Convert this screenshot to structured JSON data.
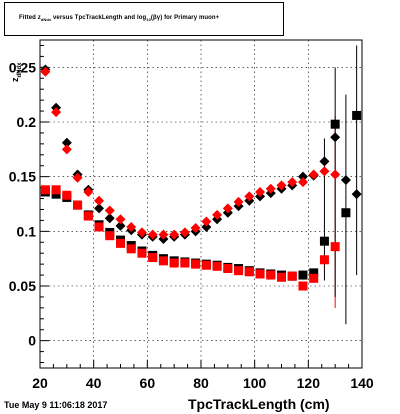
{
  "title": {
    "pre": "Fitted  z",
    "sub1": "dNdx",
    "mid": "  versus TpcTrackLength and log",
    "sub2": "10",
    "post": "(βγ) for Primary muon+"
  },
  "footer_date": "Tue May  9 11:06:18 2017",
  "chart_data": {
    "type": "scatter",
    "title": "Fitted z_dNdx versus TpcTrackLength and log10(βγ) for Primary muon+",
    "xlabel": "TpcTrackLength (cm)",
    "ylabel": "z_dNdx",
    "xlim": [
      20,
      140
    ],
    "ylim": [
      -0.025,
      0.275
    ],
    "x_ticks": [
      20,
      40,
      60,
      80,
      100,
      120,
      140
    ],
    "y_ticks": [
      0,
      0.05,
      0.1,
      0.15,
      0.2,
      0.25
    ],
    "x_tick_labels": [
      "20",
      "40",
      "60",
      "80",
      "100",
      "120",
      "140"
    ],
    "y_tick_labels": [
      "0",
      "0.05",
      "0.1",
      "0.15",
      "0.2",
      "0.25"
    ],
    "grid": true,
    "series": [
      {
        "color": "#000000",
        "marker": "diamond",
        "points": [
          {
            "x": 22,
            "y": 0.248
          },
          {
            "x": 26,
            "y": 0.213
          },
          {
            "x": 30,
            "y": 0.181
          },
          {
            "x": 34,
            "y": 0.152
          },
          {
            "x": 38,
            "y": 0.138
          },
          {
            "x": 42,
            "y": 0.121
          },
          {
            "x": 46,
            "y": 0.112
          },
          {
            "x": 50,
            "y": 0.105
          },
          {
            "x": 54,
            "y": 0.101
          },
          {
            "x": 58,
            "y": 0.097
          },
          {
            "x": 62,
            "y": 0.095
          },
          {
            "x": 66,
            "y": 0.093
          },
          {
            "x": 70,
            "y": 0.095
          },
          {
            "x": 74,
            "y": 0.097
          },
          {
            "x": 78,
            "y": 0.1
          },
          {
            "x": 82,
            "y": 0.104
          },
          {
            "x": 86,
            "y": 0.111
          },
          {
            "x": 90,
            "y": 0.117
          },
          {
            "x": 94,
            "y": 0.123
          },
          {
            "x": 98,
            "y": 0.128
          },
          {
            "x": 102,
            "y": 0.132
          },
          {
            "x": 106,
            "y": 0.135
          },
          {
            "x": 110,
            "y": 0.139
          },
          {
            "x": 114,
            "y": 0.142
          },
          {
            "x": 118,
            "y": 0.15
          },
          {
            "x": 122,
            "y": 0.151
          },
          {
            "x": 126,
            "y": 0.164
          },
          {
            "x": 130,
            "y": 0.186
          },
          {
            "x": 134,
            "y": 0.147
          },
          {
            "x": 138,
            "y": 0.134
          }
        ]
      },
      {
        "color": "#ff0000",
        "marker": "diamond",
        "points": [
          {
            "x": 22,
            "y": 0.246
          },
          {
            "x": 26,
            "y": 0.209
          },
          {
            "x": 30,
            "y": 0.175
          },
          {
            "x": 34,
            "y": 0.149
          },
          {
            "x": 38,
            "y": 0.136
          },
          {
            "x": 42,
            "y": 0.128
          },
          {
            "x": 46,
            "y": 0.119
          },
          {
            "x": 50,
            "y": 0.111
          },
          {
            "x": 54,
            "y": 0.104
          },
          {
            "x": 58,
            "y": 0.099
          },
          {
            "x": 62,
            "y": 0.097
          },
          {
            "x": 66,
            "y": 0.097
          },
          {
            "x": 70,
            "y": 0.097
          },
          {
            "x": 74,
            "y": 0.099
          },
          {
            "x": 78,
            "y": 0.103
          },
          {
            "x": 82,
            "y": 0.109
          },
          {
            "x": 86,
            "y": 0.115
          },
          {
            "x": 90,
            "y": 0.121
          },
          {
            "x": 94,
            "y": 0.127
          },
          {
            "x": 98,
            "y": 0.132
          },
          {
            "x": 102,
            "y": 0.136
          },
          {
            "x": 106,
            "y": 0.139
          },
          {
            "x": 110,
            "y": 0.142
          },
          {
            "x": 114,
            "y": 0.145
          },
          {
            "x": 118,
            "y": 0.145
          },
          {
            "x": 122,
            "y": 0.152
          },
          {
            "x": 126,
            "y": 0.155
          },
          {
            "x": 130,
            "y": 0.152
          }
        ]
      },
      {
        "color": "#000000",
        "marker": "square",
        "points": [
          {
            "x": 22,
            "y": 0.136
          },
          {
            "x": 26,
            "y": 0.134
          },
          {
            "x": 30,
            "y": 0.131
          },
          {
            "x": 34,
            "y": 0.124
          },
          {
            "x": 38,
            "y": 0.115
          },
          {
            "x": 42,
            "y": 0.106
          },
          {
            "x": 46,
            "y": 0.099
          },
          {
            "x": 50,
            "y": 0.092
          },
          {
            "x": 54,
            "y": 0.087
          },
          {
            "x": 58,
            "y": 0.082
          },
          {
            "x": 62,
            "y": 0.078
          },
          {
            "x": 66,
            "y": 0.075
          },
          {
            "x": 70,
            "y": 0.073
          },
          {
            "x": 74,
            "y": 0.072
          },
          {
            "x": 78,
            "y": 0.071
          },
          {
            "x": 82,
            "y": 0.07
          },
          {
            "x": 86,
            "y": 0.069
          },
          {
            "x": 90,
            "y": 0.067
          },
          {
            "x": 94,
            "y": 0.066
          },
          {
            "x": 98,
            "y": 0.064
          },
          {
            "x": 102,
            "y": 0.062
          },
          {
            "x": 106,
            "y": 0.061
          },
          {
            "x": 110,
            "y": 0.06
          },
          {
            "x": 114,
            "y": 0.059
          },
          {
            "x": 118,
            "y": 0.06
          },
          {
            "x": 122,
            "y": 0.062
          },
          {
            "x": 126,
            "y": 0.091
          },
          {
            "x": 130,
            "y": 0.198
          },
          {
            "x": 134,
            "y": 0.117
          },
          {
            "x": 138,
            "y": 0.206
          }
        ]
      },
      {
        "color": "#ff0000",
        "marker": "square",
        "points": [
          {
            "x": 22,
            "y": 0.138
          },
          {
            "x": 26,
            "y": 0.138
          },
          {
            "x": 30,
            "y": 0.133
          },
          {
            "x": 34,
            "y": 0.124
          },
          {
            "x": 38,
            "y": 0.114
          },
          {
            "x": 42,
            "y": 0.104
          },
          {
            "x": 46,
            "y": 0.096
          },
          {
            "x": 50,
            "y": 0.089
          },
          {
            "x": 54,
            "y": 0.084
          },
          {
            "x": 58,
            "y": 0.08
          },
          {
            "x": 62,
            "y": 0.076
          },
          {
            "x": 66,
            "y": 0.073
          },
          {
            "x": 70,
            "y": 0.071
          },
          {
            "x": 74,
            "y": 0.071
          },
          {
            "x": 78,
            "y": 0.07
          },
          {
            "x": 82,
            "y": 0.069
          },
          {
            "x": 86,
            "y": 0.068
          },
          {
            "x": 90,
            "y": 0.066
          },
          {
            "x": 94,
            "y": 0.064
          },
          {
            "x": 98,
            "y": 0.063
          },
          {
            "x": 102,
            "y": 0.061
          },
          {
            "x": 106,
            "y": 0.06
          },
          {
            "x": 110,
            "y": 0.058
          },
          {
            "x": 114,
            "y": 0.059
          },
          {
            "x": 118,
            "y": 0.05
          },
          {
            "x": 122,
            "y": 0.057
          },
          {
            "x": 126,
            "y": 0.074
          },
          {
            "x": 130,
            "y": 0.086
          }
        ]
      }
    ],
    "error_bars": [
      {
        "x": 126,
        "low": 0.055,
        "high": 0.185,
        "color": "#000000"
      },
      {
        "x": 130,
        "low": 0.03,
        "high": 0.205,
        "color": "#ff0000"
      },
      {
        "x": 130,
        "low": 0.04,
        "high": 0.25,
        "color": "#000000"
      },
      {
        "x": 134,
        "low": 0.015,
        "high": 0.225,
        "color": "#000000"
      },
      {
        "x": 138,
        "low": 0.06,
        "high": 0.27,
        "color": "#000000"
      }
    ]
  }
}
